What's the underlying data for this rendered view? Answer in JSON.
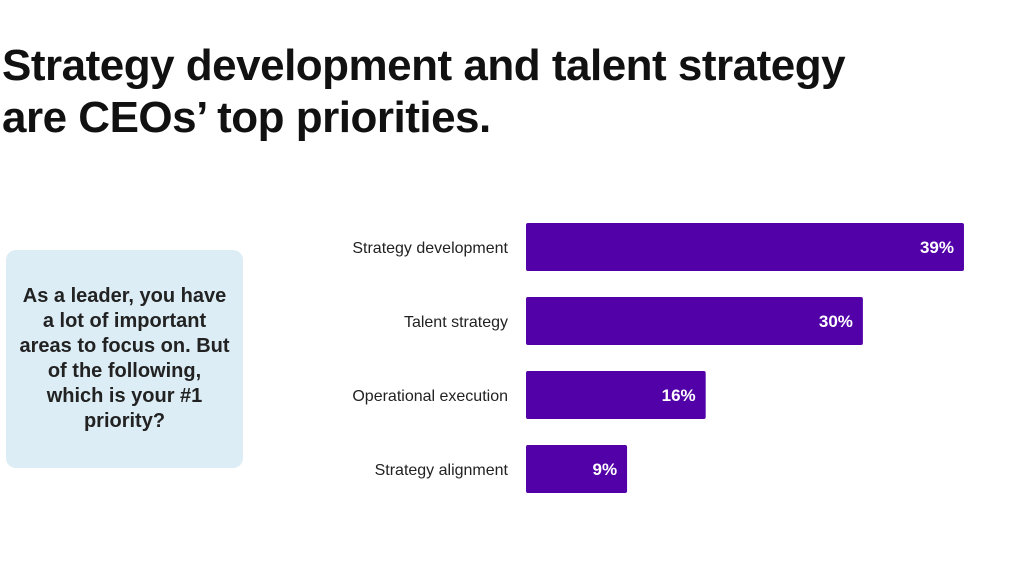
{
  "headline": {
    "line1": "Strategy development and talent strategy",
    "line2": "are CEOs’ top priorities."
  },
  "question": "As a leader, you have a lot of important areas to focus on. But of the following, which is your #1 priority?",
  "colors": {
    "bar": "#5200a8",
    "question_bg": "#dcedf5"
  },
  "chart_data": {
    "type": "bar",
    "orientation": "horizontal",
    "categories": [
      "Strategy development",
      "Talent strategy",
      "Operational execution",
      "Strategy alignment"
    ],
    "values": [
      39,
      30,
      16,
      9
    ],
    "value_labels": [
      "39%",
      "30%",
      "16%",
      "9%"
    ],
    "unit": "%",
    "xlim": [
      0,
      40
    ],
    "grid": false,
    "legend": "none"
  }
}
